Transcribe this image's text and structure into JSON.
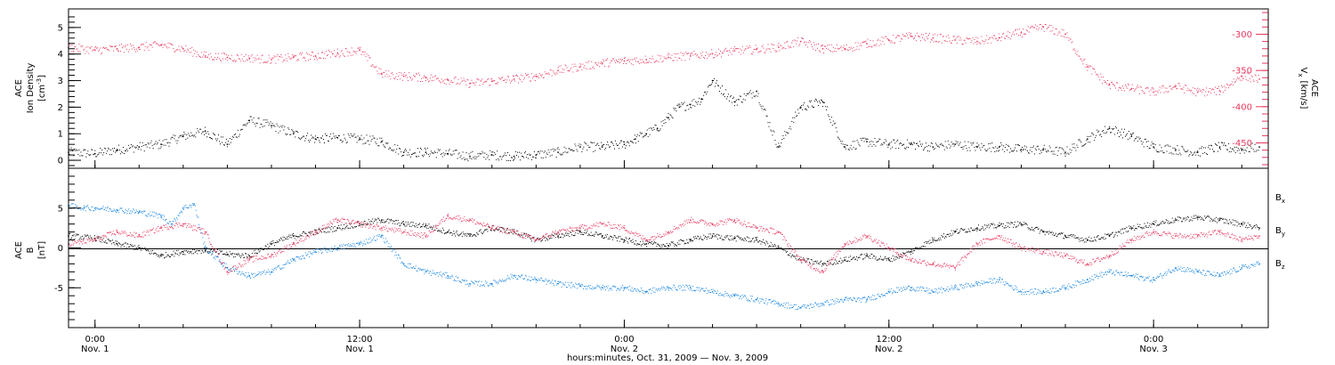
{
  "figure": {
    "xlabel": "hours:minutes, Oct. 31, 2009 — Nov.  3, 2009",
    "time_ticks": [
      {
        "time": "0:00",
        "date": "Nov. 1"
      },
      {
        "time": "12:00",
        "date": "Nov. 1"
      },
      {
        "time": "0:00",
        "date": "Nov. 2"
      },
      {
        "time": "12:00",
        "date": "Nov. 2"
      },
      {
        "time": "0:00",
        "date": "Nov. 3"
      }
    ],
    "colors": {
      "black": "#000000",
      "pink": "#e8385e",
      "blue": "#1a86e0"
    }
  },
  "chart_data": [
    {
      "type": "scatter",
      "panel": "top",
      "x_unit": "hours since 2009-10-31 00:00 UT",
      "xlim": [
        22.8,
        77.2
      ],
      "ylabel_left": [
        "ACE",
        "Ion Density",
        "[cm",
        "-3",
        "]"
      ],
      "ylabel_right": [
        "ACE",
        "V",
        "x",
        "[km/s]"
      ],
      "ylim_left": [
        -0.3,
        5.7
      ],
      "ylim_right": [
        -485,
        -265
      ],
      "yticks_left": [
        "0",
        "1",
        "2",
        "3",
        "4",
        "5"
      ],
      "yticks_right": [
        "-300",
        "-350",
        "-400",
        "-450"
      ],
      "series": [
        {
          "axis": "left",
          "color": "black",
          "x": [
            22.8,
            24,
            25,
            26,
            27,
            28,
            29,
            30,
            31,
            32,
            33,
            34,
            35,
            36,
            37,
            38,
            39,
            40,
            41,
            42,
            43,
            44,
            45,
            46,
            47,
            48,
            48.5,
            49,
            49.5,
            50,
            50.5,
            51,
            51.5,
            52,
            53,
            54,
            55,
            56,
            57,
            58,
            59,
            60,
            61,
            62,
            63,
            64,
            65,
            66,
            67,
            68,
            69,
            70,
            71,
            72,
            73,
            74,
            75,
            76,
            76.8
          ],
          "y": [
            0.3,
            0.25,
            0.4,
            0.5,
            0.6,
            0.9,
            1.1,
            0.6,
            1.5,
            1.3,
            1.0,
            0.8,
            0.85,
            0.8,
            0.7,
            0.3,
            0.3,
            0.25,
            0.15,
            0.2,
            0.15,
            0.2,
            0.3,
            0.5,
            0.5,
            0.6,
            0.8,
            1.0,
            1.2,
            1.6,
            2.0,
            2.1,
            2.3,
            3.0,
            2.2,
            2.6,
            0.5,
            2.0,
            2.2,
            0.5,
            0.7,
            0.6,
            0.6,
            0.5,
            0.6,
            0.5,
            0.5,
            0.4,
            0.4,
            0.3,
            0.8,
            1.2,
            0.9,
            0.5,
            0.4,
            0.3,
            0.5,
            0.4,
            0.5
          ]
        },
        {
          "axis": "right",
          "color": "pink",
          "x": [
            22.8,
            24,
            25,
            26,
            27,
            28,
            29,
            30,
            31,
            32,
            33,
            34,
            35,
            36,
            37,
            38,
            39,
            40,
            41,
            42,
            43,
            44,
            45,
            46,
            47,
            48,
            49,
            50,
            51,
            52,
            53,
            54,
            55,
            56,
            57,
            58,
            59,
            60,
            61,
            62,
            63,
            64,
            65,
            66,
            67,
            68,
            69,
            70,
            71,
            72,
            73,
            74,
            75,
            76,
            76.8
          ],
          "y": [
            -318,
            -322,
            -320,
            -318,
            -315,
            -320,
            -330,
            -332,
            -333,
            -335,
            -332,
            -330,
            -326,
            -322,
            -355,
            -358,
            -360,
            -363,
            -368,
            -365,
            -362,
            -358,
            -350,
            -345,
            -340,
            -337,
            -335,
            -332,
            -330,
            -327,
            -323,
            -321,
            -318,
            -310,
            -320,
            -320,
            -313,
            -308,
            -303,
            -305,
            -308,
            -310,
            -305,
            -298,
            -290,
            -300,
            -345,
            -370,
            -375,
            -380,
            -372,
            -380,
            -378,
            -358,
            -362
          ]
        }
      ]
    },
    {
      "type": "scatter",
      "panel": "bottom",
      "x_unit": "hours since 2009-10-31 00:00 UT",
      "xlim": [
        22.8,
        77.2
      ],
      "ylabel": [
        "ACE",
        "B",
        "[nT]"
      ],
      "ylim": [
        -10,
        10
      ],
      "yticks": [
        "5",
        "0",
        "-5"
      ],
      "zero_line": true,
      "series": [
        {
          "name": "B",
          "sub": "x",
          "color": "black",
          "x": [
            22.8,
            24,
            25,
            26,
            27,
            28,
            29,
            30,
            31,
            32,
            33,
            34,
            35,
            36,
            37,
            38,
            39,
            40,
            41,
            42,
            43,
            44,
            45,
            46,
            47,
            48,
            49,
            50,
            51,
            52,
            53,
            54,
            55,
            56,
            57,
            58,
            59,
            60,
            61,
            62,
            63,
            64,
            65,
            66,
            67,
            68,
            69,
            70,
            71,
            72,
            73,
            74,
            75,
            76,
            76.8
          ],
          "y": [
            1.5,
            1.2,
            0.5,
            0.0,
            -1.0,
            -0.5,
            -0.3,
            -0.8,
            -1.0,
            0.5,
            1.5,
            2.0,
            2.5,
            3.0,
            3.5,
            3.0,
            2.8,
            2.0,
            1.5,
            2.5,
            2.0,
            1.0,
            1.5,
            2.0,
            1.5,
            1.0,
            0.5,
            0.3,
            1.0,
            1.5,
            1.2,
            1.0,
            0.0,
            -1.5,
            -2.0,
            -1.5,
            -1.0,
            -1.5,
            -0.5,
            1.0,
            2.0,
            2.5,
            2.8,
            3.0,
            2.0,
            1.5,
            1.0,
            1.5,
            2.5,
            3.0,
            3.5,
            3.8,
            3.5,
            3.0,
            2.5
          ]
        },
        {
          "name": "B",
          "sub": "y",
          "color": "blue",
          "x": [
            22.8,
            23.5,
            24,
            25,
            26,
            27,
            27.5,
            28,
            28.5,
            29,
            30,
            31,
            32,
            33,
            34,
            35,
            36,
            37,
            38,
            39,
            40,
            41,
            42,
            43,
            44,
            45,
            46,
            47,
            48,
            49,
            50,
            51,
            52,
            53,
            54,
            55,
            56,
            57,
            58,
            59,
            60,
            61,
            62,
            63,
            64,
            65,
            66,
            67,
            68,
            69,
            70,
            71,
            72,
            73,
            74,
            75,
            76,
            76.8
          ],
          "y": [
            5.3,
            5.0,
            5.0,
            4.8,
            4.5,
            4.0,
            3.0,
            5.0,
            5.5,
            0.0,
            -2.5,
            -3.5,
            -3.0,
            -1.5,
            -0.5,
            0.0,
            0.5,
            1.5,
            -2.0,
            -3.0,
            -3.5,
            -4.5,
            -4.5,
            -3.5,
            -4.0,
            -4.5,
            -4.8,
            -5.0,
            -5.0,
            -5.5,
            -5.0,
            -5.0,
            -5.5,
            -6.0,
            -6.5,
            -7.0,
            -7.5,
            -7.0,
            -6.5,
            -6.5,
            -5.5,
            -5.0,
            -5.5,
            -5.0,
            -4.5,
            -4.0,
            -5.5,
            -5.5,
            -5.0,
            -4.0,
            -3.0,
            -3.5,
            -4.0,
            -2.5,
            -3.0,
            -3.5,
            -2.5,
            -2.0
          ]
        },
        {
          "name": "B",
          "sub": "z",
          "color": "pink",
          "x": [
            22.8,
            24,
            25,
            26,
            27,
            28,
            29,
            30,
            31,
            32,
            33,
            34,
            35,
            36,
            37,
            38,
            39,
            40,
            41,
            42,
            43,
            44,
            45,
            46,
            47,
            48,
            49,
            50,
            51,
            52,
            53,
            54,
            55,
            56,
            57,
            58,
            59,
            60,
            61,
            62,
            63,
            64,
            65,
            66,
            67,
            68,
            69,
            70,
            71,
            72,
            73,
            74,
            75,
            76,
            76.8
          ],
          "y": [
            0.5,
            1.0,
            2.0,
            1.5,
            2.5,
            3.0,
            2.0,
            -3.0,
            -1.5,
            -1.0,
            0.5,
            2.0,
            3.5,
            3.0,
            2.5,
            2.0,
            1.5,
            4.0,
            3.5,
            2.5,
            2.0,
            1.0,
            2.0,
            2.5,
            3.0,
            2.5,
            1.0,
            2.0,
            3.5,
            3.0,
            3.5,
            2.5,
            2.0,
            -1.5,
            -3.0,
            0.5,
            1.5,
            0.0,
            -1.5,
            -2.0,
            -2.5,
            0.5,
            1.5,
            0.0,
            -0.5,
            -1.0,
            -2.0,
            -1.0,
            1.0,
            2.0,
            1.5,
            1.5,
            2.0,
            1.0,
            1.5
          ]
        }
      ]
    }
  ]
}
